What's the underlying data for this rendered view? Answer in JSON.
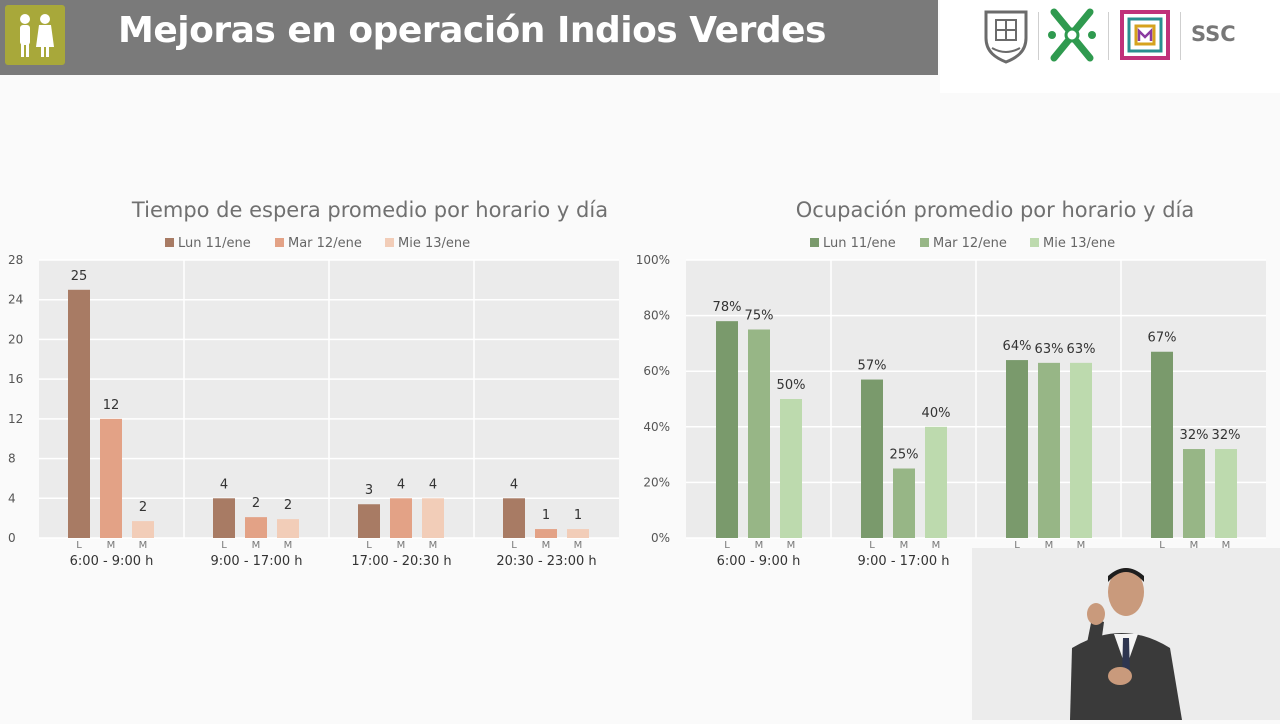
{
  "header": {
    "title": "Mejoras en operación Indios Verdes"
  },
  "logos": {
    "ssc": "SSC"
  },
  "chart_data": [
    {
      "type": "bar",
      "title": "Tiempo de espera promedio por horario y día",
      "legend": [
        "Lun 11/ene",
        "Mar 12/ene",
        "Mie 13/ene"
      ],
      "legend_position": "top",
      "categories": [
        "6:00 - 9:00 h",
        "9:00 - 17:00 h",
        "17:00 - 20:30 h",
        "20:30 - 23:00 h"
      ],
      "sub_labels": [
        "L",
        "M",
        "M"
      ],
      "series": [
        {
          "name": "Lun 11/ene",
          "values": [
            25,
            4,
            3.4,
            4
          ],
          "labels": [
            "25",
            "4",
            "3",
            "4"
          ]
        },
        {
          "name": "Mar 12/ene",
          "values": [
            12,
            2.1,
            4,
            0.9
          ],
          "labels": [
            "12",
            "2",
            "4",
            "1"
          ]
        },
        {
          "name": "Mie 13/ene",
          "values": [
            1.7,
            1.9,
            4,
            0.9
          ],
          "labels": [
            "2",
            "2",
            "4",
            "1"
          ]
        }
      ],
      "colors": [
        "#a87b64",
        "#e3a286",
        "#f2cdb8"
      ],
      "ylim": [
        0,
        28
      ],
      "yticks": [
        0,
        4,
        8,
        12,
        16,
        20,
        24,
        28
      ],
      "ytick_labels": [
        "0",
        "4",
        "8",
        "12",
        "16",
        "20",
        "24",
        "28"
      ],
      "grid": true
    },
    {
      "type": "bar",
      "title": "Ocupación promedio por horario y día",
      "legend": [
        "Lun 11/ene",
        "Mar 12/ene",
        "Mie 13/ene"
      ],
      "legend_position": "top",
      "categories": [
        "6:00 - 9:00 h",
        "9:00 - 17:00 h",
        "",
        ""
      ],
      "sub_labels": [
        "L",
        "M",
        "M"
      ],
      "series": [
        {
          "name": "Lun 11/ene",
          "values": [
            78,
            57,
            64,
            67
          ],
          "labels": [
            "78%",
            "57%",
            "64%",
            "67%"
          ]
        },
        {
          "name": "Mar 12/ene",
          "values": [
            75,
            25,
            63,
            32
          ],
          "labels": [
            "75%",
            "25%",
            "63%",
            "32%"
          ]
        },
        {
          "name": "Mie 13/ene",
          "values": [
            50,
            40,
            63,
            32
          ],
          "labels": [
            "50%",
            "40%",
            "63%",
            "32%"
          ]
        }
      ],
      "colors": [
        "#7a9a6c",
        "#97b686",
        "#bddaae"
      ],
      "ylim": [
        0,
        100
      ],
      "yticks": [
        0,
        20,
        40,
        60,
        80,
        100
      ],
      "ytick_labels": [
        "0%",
        "20%",
        "40%",
        "60%",
        "80%",
        "100%"
      ],
      "grid": true
    }
  ]
}
